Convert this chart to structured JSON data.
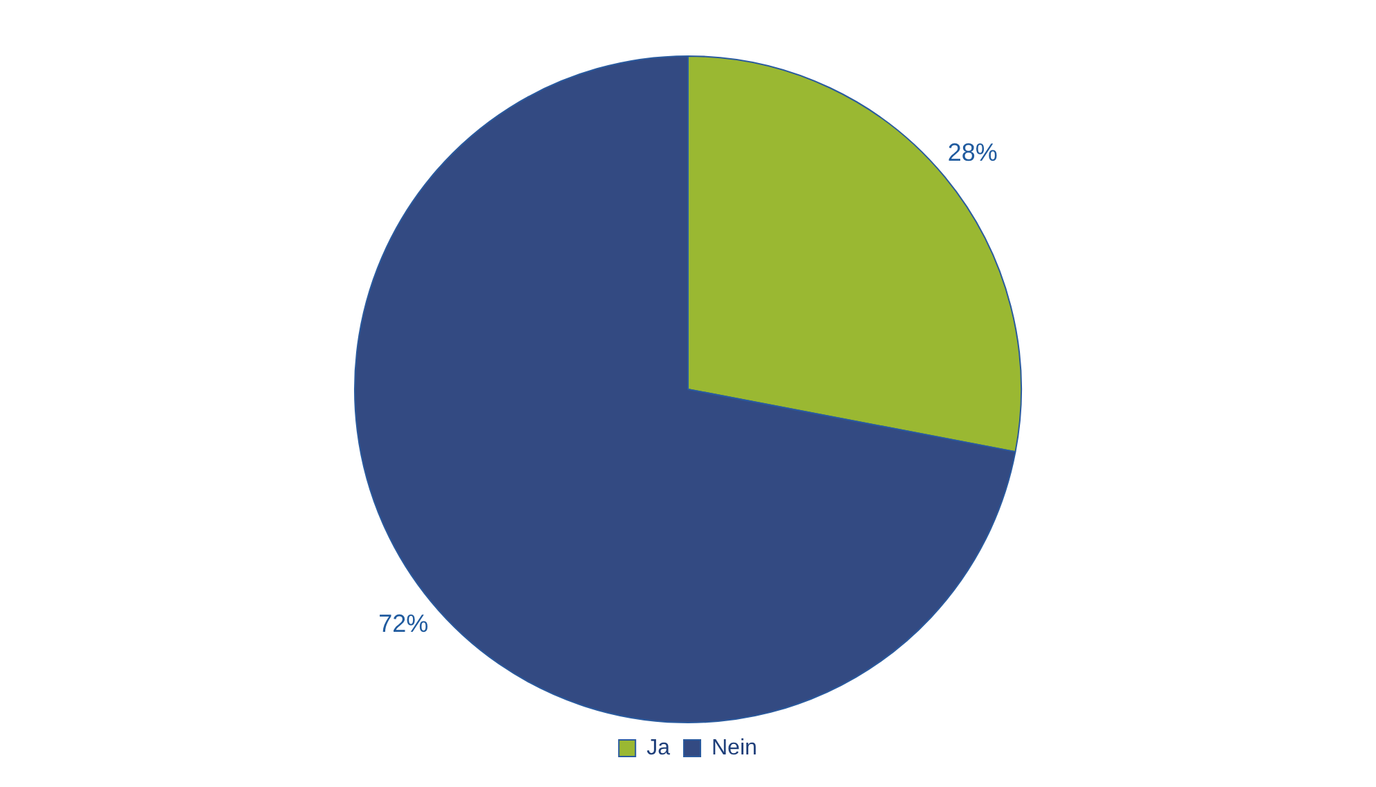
{
  "chart_data": {
    "type": "pie",
    "categories": [
      "Ja",
      "Nein"
    ],
    "values": [
      28,
      72
    ],
    "colors": [
      "#9ab832",
      "#334a82"
    ],
    "value_labels": [
      "28%",
      "72%"
    ],
    "legend": "bottom"
  }
}
